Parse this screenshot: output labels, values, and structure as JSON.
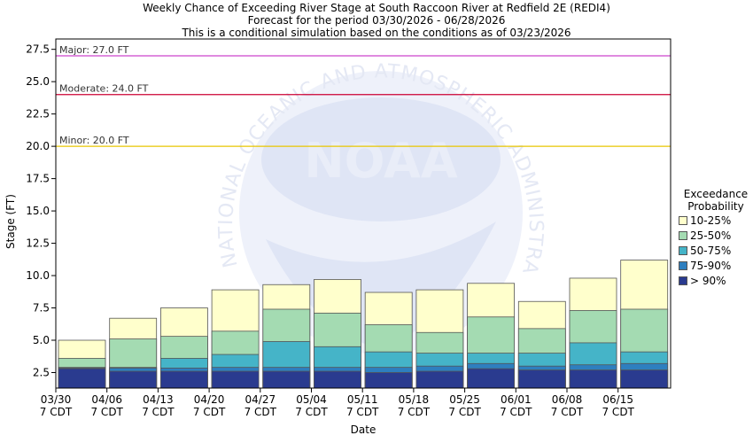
{
  "title": {
    "line1": "Weekly Chance of Exceeding River Stage at South Raccoon River at Redfield 2E (REDI4)",
    "line2": "Forecast for the period 03/30/2026 - 06/28/2026",
    "line3": "This is a conditional simulation based on the conditions as of 03/23/2026"
  },
  "chart_data": {
    "type": "bar",
    "stacked": true,
    "xlabel": "Date",
    "ylabel": "Stage (FT)",
    "ylim": [
      1.3,
      28.3
    ],
    "yticks": [
      "2.5",
      "5.0",
      "7.5",
      "10.0",
      "12.5",
      "15.0",
      "17.5",
      "20.0",
      "22.5",
      "25.0",
      "27.5"
    ],
    "xtick_dates": [
      "03/30",
      "04/06",
      "04/13",
      "04/20",
      "04/27",
      "05/04",
      "05/11",
      "05/18",
      "05/25",
      "06/01",
      "06/08",
      "06/15"
    ],
    "xtick_zone": "7 CDT",
    "categories": [
      "03/30",
      "04/06",
      "04/13",
      "04/20",
      "04/27",
      "05/04",
      "05/11",
      "05/18",
      "05/25",
      "06/01",
      "06/08",
      "06/15"
    ],
    "series": [
      {
        "name": "> 90%",
        "color": "#2a3b8f",
        "values": [
          2.8,
          2.6,
          2.6,
          2.6,
          2.6,
          2.6,
          2.5,
          2.6,
          2.8,
          2.7,
          2.7,
          2.7
        ]
      },
      {
        "name": "75-90%",
        "color": "#2e7fbf",
        "values": [
          2.85,
          2.85,
          2.85,
          2.9,
          2.9,
          2.9,
          2.9,
          3.0,
          3.2,
          3.0,
          3.1,
          3.2
        ]
      },
      {
        "name": "50-75%",
        "color": "#45b4c8",
        "values": [
          2.9,
          2.9,
          3.6,
          3.9,
          4.9,
          4.5,
          4.1,
          4.0,
          4.0,
          4.0,
          4.8,
          4.1
        ]
      },
      {
        "name": "25-50%",
        "color": "#a4dbb2",
        "values": [
          3.6,
          5.1,
          5.3,
          5.7,
          7.4,
          7.1,
          6.2,
          5.6,
          6.8,
          5.9,
          7.3,
          7.4
        ]
      },
      {
        "name": "10-25%",
        "color": "#ffffcc",
        "values": [
          5.0,
          6.7,
          7.5,
          8.9,
          9.3,
          9.7,
          8.7,
          8.9,
          9.4,
          8.0,
          9.8,
          11.2
        ]
      }
    ],
    "thresholds": [
      {
        "label": "Major: 27.0 FT",
        "value": 27.0,
        "color": "#cc44cc"
      },
      {
        "label": "Moderate: 24.0 FT",
        "value": 24.0,
        "color": "#cc0033"
      },
      {
        "label": "Minor: 20.0 FT",
        "value": 20.0,
        "color": "#e8c600"
      }
    ],
    "legend_title_line1": "Exceedance",
    "legend_title_line2": "Probability",
    "legend_order": [
      "10-25%",
      "25-50%",
      "50-75%",
      "75-90%",
      "> 90%"
    ],
    "legend_placement": "right",
    "watermark": "NATIONAL OCEANIC AND ATMOSPHERIC ADMINISTRATION"
  }
}
